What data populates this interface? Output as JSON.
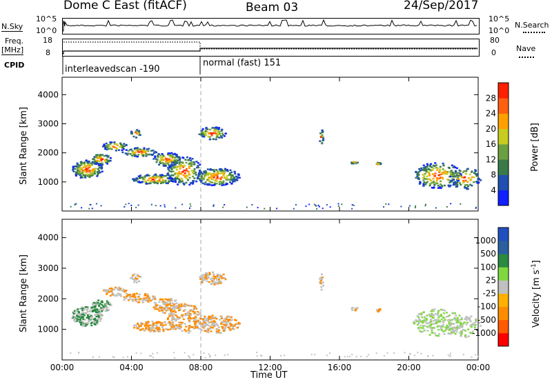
{
  "header": {
    "title": "Dome C East (fitACF)",
    "beam": "Beam 03",
    "date": "24/Sep/2017"
  },
  "left_labels": {
    "nsky": "N.Sky",
    "freq_line1": "Freq.",
    "freq_line2": "[MHz]",
    "cpid": "CPID"
  },
  "right_labels": {
    "nsearch": "N.Search",
    "nave": "Nave"
  },
  "small_panels": {
    "noise_left_ticks": [
      "10^5",
      "10^0"
    ],
    "noise_right_ticks": [
      "10^5",
      "10^0"
    ],
    "freq_left_ticks": [
      "18",
      "8"
    ],
    "nave_right_ticks": [
      "80",
      "0"
    ]
  },
  "cpid_text": {
    "first": "interleavedscan -190",
    "second": "normal (fast) 151"
  },
  "colors": {
    "power": [
      "#1020ff",
      "#2050b0",
      "#3a7a48",
      "#6aa040",
      "#c8cc20",
      "#ffa000",
      "#ff6010",
      "#ff2000"
    ],
    "velocity": [
      "#ff0000",
      "#ff5a00",
      "#ff8c00",
      "#ffb000",
      "#c0c0c0",
      "#80d840",
      "#2a8a40",
      "#2a60a0",
      "#2050c0"
    ],
    "guide_line": "#b8b8b8"
  },
  "chart_data": [
    {
      "type": "heatmap",
      "panel": "power",
      "xlabel": "",
      "ylabel": "Slant Range [km]",
      "x_ticks": [
        "00:00",
        "04:00",
        "08:00",
        "12:00",
        "16:00",
        "20:00",
        "00:00"
      ],
      "y_ticks": [
        "1000",
        "2000",
        "3000",
        "4000"
      ],
      "ylim": [
        0,
        4600
      ],
      "grid": false,
      "colorbar": {
        "label": "Power [dB]",
        "ticks": [
          "4",
          "8",
          "12",
          "16",
          "20",
          "24",
          "28"
        ],
        "range": [
          0,
          32
        ]
      }
    },
    {
      "type": "heatmap",
      "panel": "velocity",
      "xlabel": "Time UT",
      "ylabel": "Slant Range [km]",
      "x_ticks": [
        "00:00",
        "04:00",
        "08:00",
        "12:00",
        "16:00",
        "20:00",
        "00:00"
      ],
      "y_ticks": [
        "1000",
        "2000",
        "3000",
        "4000"
      ],
      "ylim": [
        0,
        4600
      ],
      "grid": false,
      "colorbar": {
        "label": "Velocity [m s^-1]",
        "ticks": [
          "1000",
          "500",
          "100",
          "25",
          "-25",
          "-100",
          "-500",
          "-1000"
        ]
      }
    }
  ]
}
